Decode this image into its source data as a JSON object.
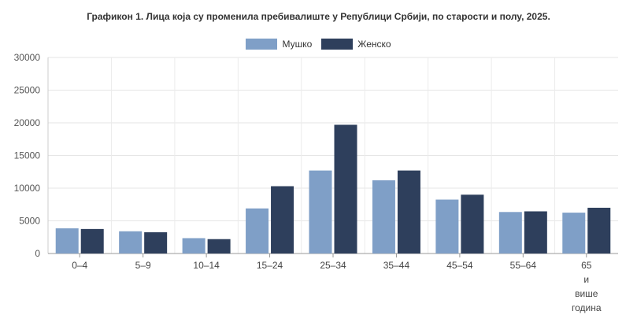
{
  "chart_data": {
    "type": "bar",
    "title": "Графикон 1. Лица која су променила пребивалиште у Републици Србији, по старости и полу, 2025.",
    "categories": [
      "0–4",
      "5–9",
      "10–14",
      "15–24",
      "25–34",
      "35–44",
      "45–54",
      "55–64",
      "65 и више година"
    ],
    "series": [
      {
        "name": "Мушко",
        "color": "#7f9fc7",
        "values": [
          3850,
          3400,
          2350,
          6900,
          12700,
          11200,
          8250,
          6350,
          6250
        ]
      },
      {
        "name": "Женско",
        "color": "#2e3f5c",
        "values": [
          3750,
          3250,
          2200,
          10300,
          19700,
          12700,
          9000,
          6450,
          7000
        ]
      }
    ],
    "ylim": [
      0,
      30000
    ],
    "yticks": [
      0,
      5000,
      10000,
      15000,
      20000,
      25000,
      30000
    ],
    "grid": true,
    "legend_position": "top-center",
    "xlabel": "",
    "ylabel": ""
  }
}
